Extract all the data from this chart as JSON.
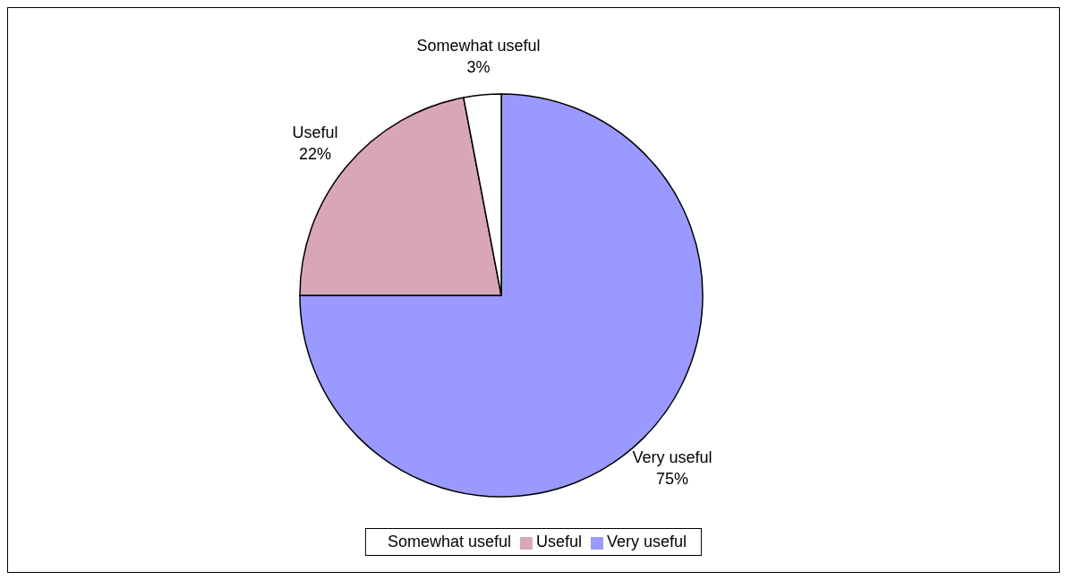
{
  "chart_data": {
    "type": "pie",
    "categories": [
      "Very useful",
      "Useful",
      "Somewhat useful"
    ],
    "values": [
      75,
      22,
      3
    ],
    "colors": [
      "#9999ff",
      "#d9a6b8",
      "#ffffff"
    ],
    "value_labels": [
      "75%",
      "22%",
      "3%"
    ],
    "legend": "bottom"
  }
}
